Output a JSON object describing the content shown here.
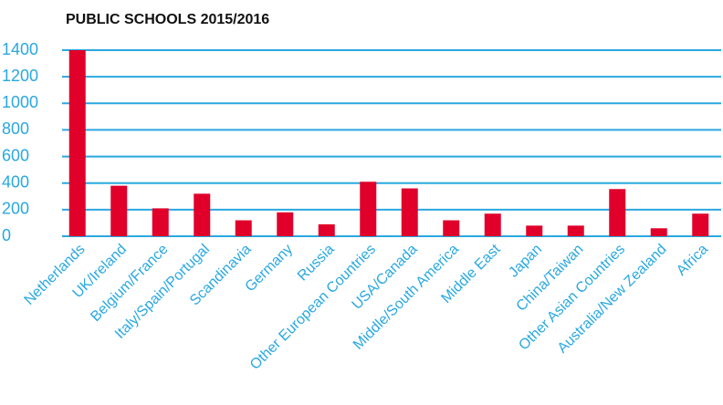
{
  "chart_data": {
    "type": "bar",
    "title": "PUBLIC SCHOOLS 2015/2016",
    "categories": [
      "Netherlands",
      "UK/Ireland",
      "Belgium/France",
      "Italy/Spain/Portugal",
      "Scandinavia",
      "Germany",
      "Russia",
      "Other European Countries",
      "USA/Canada",
      "Middle/South America",
      "Middle East",
      "Japan",
      "China/Taiwan",
      "Other Asian Countries",
      "Australia/New Zealand",
      "Africa"
    ],
    "values": [
      1400,
      380,
      210,
      320,
      120,
      180,
      90,
      410,
      360,
      120,
      170,
      80,
      80,
      355,
      60,
      170
    ],
    "color": "#e0002a",
    "ylim": [
      0,
      1400
    ],
    "yticks": [
      0,
      200,
      400,
      600,
      800,
      1000,
      1200,
      1400
    ],
    "grid": true,
    "grid_color": "#29a8e0"
  }
}
